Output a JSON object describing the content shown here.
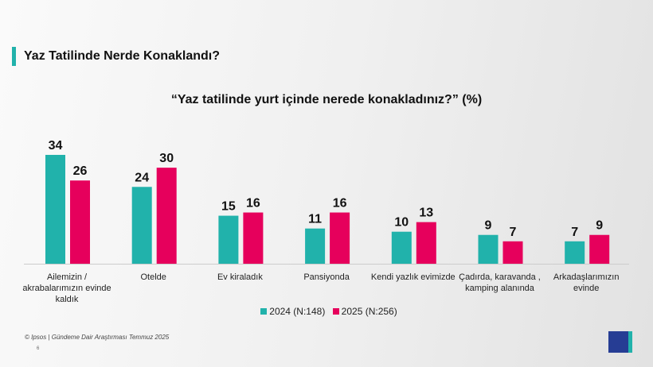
{
  "header": {
    "title": "Yaz Tatilinde Nerde Konaklandı?"
  },
  "footer": {
    "source": "© Ipsos | Gündeme Dair Araştırması Temmuz 2025",
    "page": "6",
    "logo": "Ipsos"
  },
  "colors": {
    "accent": "#21b2ab",
    "series_2024": "#21b2ab",
    "series_2025": "#e6005c"
  },
  "chart_data": {
    "type": "bar",
    "title": "“Yaz tatilinde yurt içinde nerede konakladınız?” (%)",
    "categories": [
      "Ailemizin / akrabalarımızın evinde kaldık",
      "Otelde",
      "Ev kiraladık",
      "Pansiyonda",
      "Kendi yazlık evimizde",
      "Çadırda, karavanda , kamping alanında",
      "Arkadaşlarımızın evinde"
    ],
    "series": [
      {
        "name": "2024 (N:148)",
        "values": [
          34,
          24,
          15,
          11,
          10,
          9,
          7
        ]
      },
      {
        "name": "2025 (N:256)",
        "values": [
          26,
          30,
          16,
          16,
          13,
          7,
          9
        ]
      }
    ],
    "ylim": [
      0,
      40
    ],
    "grid": false,
    "legend": "bottom"
  }
}
